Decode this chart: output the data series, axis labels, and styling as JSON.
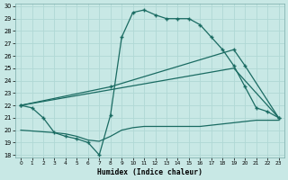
{
  "bg_color": "#c8e8e5",
  "line_color": "#1a6b62",
  "grid_color": "#b0d8d5",
  "xlabel": "Humidex (Indice chaleur)",
  "ylim": [
    18,
    30
  ],
  "xlim": [
    -0.5,
    23.5
  ],
  "yticks": [
    18,
    19,
    20,
    21,
    22,
    23,
    24,
    25,
    26,
    27,
    28,
    29,
    30
  ],
  "xticks": [
    0,
    1,
    2,
    3,
    4,
    5,
    6,
    7,
    8,
    9,
    10,
    11,
    12,
    13,
    14,
    15,
    16,
    17,
    18,
    19,
    20,
    21,
    22,
    23
  ],
  "curve1_x": [
    0,
    1,
    2,
    3,
    4,
    5,
    6,
    7,
    8,
    9,
    10,
    11,
    12,
    13,
    14,
    15,
    16,
    17,
    18,
    19,
    20,
    21,
    22,
    23
  ],
  "curve1_y": [
    22.0,
    21.8,
    21.0,
    19.8,
    19.5,
    19.3,
    19.0,
    18.0,
    21.2,
    27.5,
    29.5,
    29.7,
    29.3,
    29.0,
    29.0,
    29.0,
    28.5,
    27.5,
    26.5,
    25.2,
    23.5,
    21.8,
    21.5,
    21.0
  ],
  "line2_x": [
    0,
    8,
    19,
    20,
    23
  ],
  "line2_y": [
    22.0,
    23.5,
    26.5,
    25.2,
    21.0
  ],
  "line3_x": [
    0,
    19,
    23
  ],
  "line3_y": [
    22.0,
    25.0,
    21.0
  ],
  "line4_x": [
    0,
    3,
    4,
    5,
    6,
    7,
    8,
    9,
    10,
    11,
    12,
    13,
    14,
    15,
    16,
    17,
    18,
    19,
    20,
    21,
    22,
    23
  ],
  "line4_y": [
    20.0,
    19.8,
    19.7,
    19.5,
    19.2,
    19.1,
    19.5,
    20.0,
    20.2,
    20.3,
    20.3,
    20.3,
    20.3,
    20.3,
    20.3,
    20.4,
    20.5,
    20.6,
    20.7,
    20.8,
    20.8,
    20.8
  ]
}
